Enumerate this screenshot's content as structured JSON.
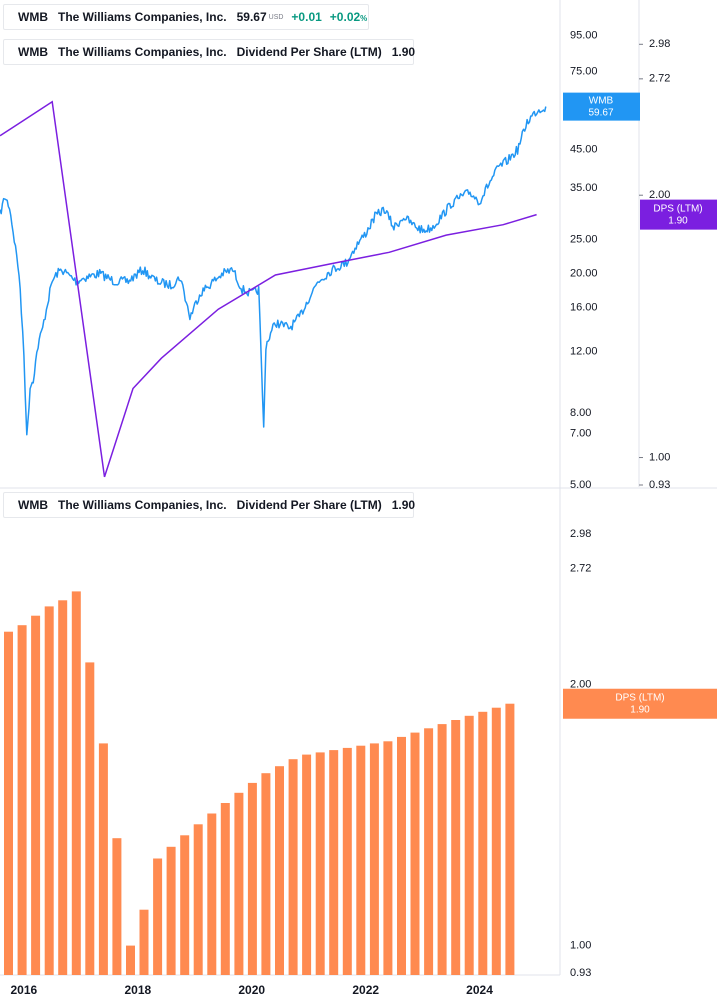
{
  "legends": {
    "price": {
      "symbol": "WMB",
      "name": "The Williams Companies, Inc.",
      "price": "59.67",
      "currency": "USD",
      "change": "+0.01",
      "change_pct": "+0.02",
      "pct_sign": "%"
    },
    "dps_top": {
      "symbol": "WMB",
      "name": "The Williams Companies, Inc.",
      "indicator": "Dividend Per Share (LTM)",
      "value": "1.90"
    },
    "dps_bottom": {
      "symbol": "WMB",
      "name": "The Williams Companies, Inc.",
      "indicator": "Dividend Per Share (LTM)",
      "value": "1.90"
    }
  },
  "colors": {
    "price_line": "#2196f3",
    "dps_line": "#7b1fe0",
    "dps_bars": "#ff8a50",
    "grid": "#e0e3eb",
    "axis_text": "#131722"
  },
  "chart_data": [
    {
      "type": "line",
      "title": "",
      "yscale": "log",
      "x_range": [
        "2015-08",
        "2025-03"
      ],
      "price_axis": {
        "ticks": [
          "95.00",
          "75.00",
          "45.00",
          "35.00",
          "25.00",
          "20.00",
          "16.00",
          "12.00",
          "8.00",
          "7.00",
          "5.00"
        ],
        "ylim": [
          5,
          120
        ]
      },
      "dps_axis": {
        "ticks": [
          "2.98",
          "2.72",
          "2.00",
          "1.00",
          "0.93"
        ],
        "ylim": [
          0.93,
          3.35
        ]
      },
      "series": [
        {
          "name": "WMB",
          "last_label": "WMB",
          "last_value": "59.67",
          "points": [
            [
              "2015-08-01",
              29.5
            ],
            [
              "2015-09-01",
              33.0
            ],
            [
              "2015-10-01",
              31.0
            ],
            [
              "2015-11-01",
              25.0
            ],
            [
              "2015-12-01",
              20.0
            ],
            [
              "2016-01-01",
              12.0
            ],
            [
              "2016-01-20",
              6.8
            ],
            [
              "2016-02-10",
              9.5
            ],
            [
              "2016-03-01",
              10.0
            ],
            [
              "2016-04-01",
              12.5
            ],
            [
              "2016-05-01",
              14.0
            ],
            [
              "2016-06-01",
              16.5
            ],
            [
              "2016-07-01",
              19.0
            ],
            [
              "2016-08-01",
              20.0
            ],
            [
              "2016-09-01",
              20.5
            ],
            [
              "2016-10-01",
              20.0
            ],
            [
              "2016-12-01",
              19.0
            ],
            [
              "2017-02-01",
              19.5
            ],
            [
              "2017-05-01",
              20.0
            ],
            [
              "2017-08-01",
              19.0
            ],
            [
              "2017-11-01",
              19.0
            ],
            [
              "2018-02-01",
              20.5
            ],
            [
              "2018-05-01",
              19.0
            ],
            [
              "2018-08-01",
              18.5
            ],
            [
              "2018-10-01",
              19.5
            ],
            [
              "2018-12-01",
              15.0
            ],
            [
              "2019-02-01",
              17.5
            ],
            [
              "2019-05-01",
              19.0
            ],
            [
              "2019-07-01",
              20.0
            ],
            [
              "2019-09-01",
              20.5
            ],
            [
              "2019-11-01",
              18.0
            ],
            [
              "2020-01-01",
              17.5
            ],
            [
              "2020-02-15",
              18.0
            ],
            [
              "2020-03-18",
              7.2
            ],
            [
              "2020-04-01",
              12.5
            ],
            [
              "2020-06-01",
              14.5
            ],
            [
              "2020-09-01",
              14.0
            ],
            [
              "2020-11-01",
              15.0
            ],
            [
              "2021-01-01",
              17.0
            ],
            [
              "2021-03-01",
              19.0
            ],
            [
              "2021-06-01",
              20.5
            ],
            [
              "2021-09-01",
              21.5
            ],
            [
              "2021-11-01",
              24.0
            ],
            [
              "2022-01-01",
              26.0
            ],
            [
              "2022-03-01",
              29.0
            ],
            [
              "2022-05-01",
              30.5
            ],
            [
              "2022-07-01",
              27.0
            ],
            [
              "2022-09-01",
              29.0
            ],
            [
              "2022-11-01",
              27.5
            ],
            [
              "2023-01-01",
              26.5
            ],
            [
              "2023-03-01",
              27.0
            ],
            [
              "2023-05-01",
              29.0
            ],
            [
              "2023-07-01",
              31.5
            ],
            [
              "2023-09-01",
              33.0
            ],
            [
              "2023-11-01",
              34.0
            ],
            [
              "2024-01-01",
              32.0
            ],
            [
              "2024-03-01",
              36.0
            ],
            [
              "2024-05-01",
              40.0
            ],
            [
              "2024-07-01",
              42.0
            ],
            [
              "2024-09-01",
              45.0
            ],
            [
              "2024-11-01",
              54.0
            ],
            [
              "2025-01-01",
              58.0
            ],
            [
              "2025-03-01",
              59.67
            ]
          ]
        },
        {
          "name": "DPS (LTM)",
          "last_label": "DPS (LTM)",
          "last_value": "1.90",
          "points": [
            [
              "2015-08-01",
              2.34
            ],
            [
              "2016-07-01",
              2.56
            ],
            [
              "2017-06-01",
              0.95
            ],
            [
              "2017-12-01",
              1.2
            ],
            [
              "2018-06-01",
              1.3
            ],
            [
              "2019-06-01",
              1.48
            ],
            [
              "2020-06-01",
              1.62
            ],
            [
              "2021-06-01",
              1.67
            ],
            [
              "2022-06-01",
              1.72
            ],
            [
              "2023-06-01",
              1.8
            ],
            [
              "2024-06-01",
              1.85
            ],
            [
              "2025-01-01",
              1.9
            ]
          ]
        }
      ]
    },
    {
      "type": "bar",
      "title": "",
      "yscale": "log",
      "ylim": [
        0.93,
        3.35
      ],
      "ticks": [
        "2.98",
        "2.72",
        "2.00",
        "1.00",
        "0.93"
      ],
      "x_ticks": [
        "2016",
        "2018",
        "2020",
        "2022",
        "2024"
      ],
      "series": [
        {
          "name": "DPS (LTM)",
          "last_label": "DPS (LTM)",
          "last_value": "1.90",
          "values": [
            2.3,
            2.34,
            2.4,
            2.46,
            2.5,
            2.56,
            2.12,
            1.71,
            1.33,
            1.0,
            1.1,
            1.26,
            1.3,
            1.34,
            1.38,
            1.42,
            1.46,
            1.5,
            1.54,
            1.58,
            1.61,
            1.64,
            1.66,
            1.67,
            1.68,
            1.69,
            1.7,
            1.71,
            1.72,
            1.74,
            1.76,
            1.78,
            1.8,
            1.82,
            1.84,
            1.86,
            1.88,
            1.9
          ]
        }
      ]
    }
  ]
}
